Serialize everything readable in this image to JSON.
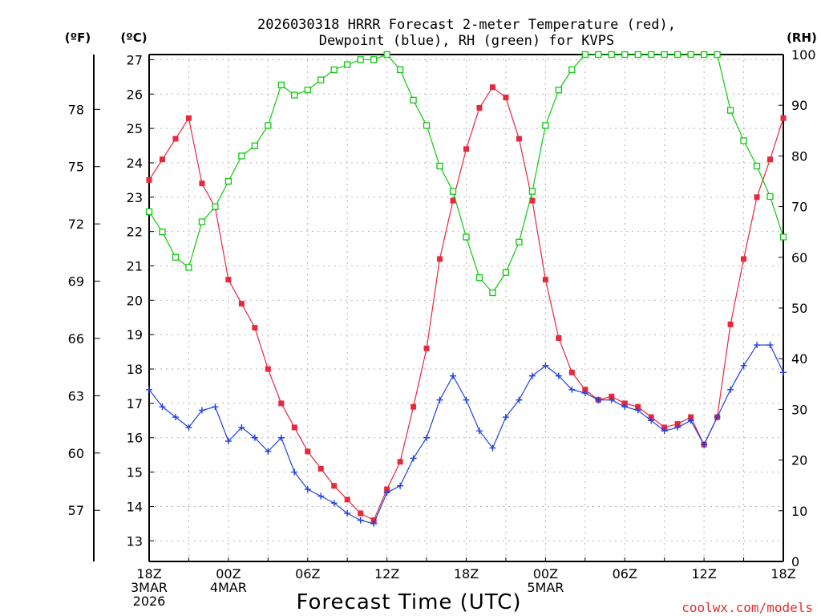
{
  "chart_data": {
    "type": "line",
    "title_line1": "2026030318 HRRR Forecast 2-meter Temperature (red),",
    "title_line2": "Dewpoint (blue), RH (green) for KVPS",
    "xlabel": "Forecast Time (UTC)",
    "credit": "coolwx.com/models",
    "units": {
      "fahrenheit": "(ºF)",
      "celsius": "(ºC)",
      "rh": "(RH)"
    },
    "celsius_axis": {
      "min": 12.4,
      "max": 27.15,
      "ticks": [
        13,
        14,
        15,
        16,
        17,
        18,
        19,
        20,
        21,
        22,
        23,
        24,
        25,
        26,
        27
      ]
    },
    "fahrenheit_ticks": [
      57,
      60,
      63,
      66,
      69,
      72,
      75,
      78
    ],
    "rh_axis": {
      "min": 0,
      "max": 100,
      "ticks": [
        0,
        10,
        20,
        30,
        40,
        50,
        60,
        70,
        80,
        90,
        100
      ]
    },
    "hours": 48,
    "x_ticks": [
      {
        "hour": 0,
        "lines": [
          "18Z",
          "3MAR",
          "2026"
        ]
      },
      {
        "hour": 6,
        "lines": [
          "00Z",
          "4MAR"
        ]
      },
      {
        "hour": 12,
        "lines": [
          "06Z"
        ]
      },
      {
        "hour": 18,
        "lines": [
          "12Z"
        ]
      },
      {
        "hour": 24,
        "lines": [
          "18Z"
        ]
      },
      {
        "hour": 30,
        "lines": [
          "00Z",
          "5MAR"
        ]
      },
      {
        "hour": 36,
        "lines": [
          "06Z"
        ]
      },
      {
        "hour": 42,
        "lines": [
          "12Z"
        ]
      },
      {
        "hour": 48,
        "lines": [
          "18Z"
        ]
      }
    ],
    "series": [
      {
        "name": "Temperature",
        "unit": "C",
        "color": "#e8283c",
        "marker": "filled-square",
        "values": [
          23.5,
          24.1,
          24.7,
          25.3,
          23.4,
          22.7,
          20.6,
          19.9,
          19.2,
          18.0,
          17.0,
          16.3,
          15.6,
          15.1,
          14.6,
          14.2,
          13.8,
          13.6,
          14.5,
          15.3,
          16.9,
          18.6,
          21.2,
          22.9,
          24.4,
          25.6,
          26.2,
          25.9,
          24.7,
          22.9,
          20.6,
          18.9,
          17.9,
          17.4,
          17.1,
          17.2,
          17.0,
          16.9,
          16.6,
          16.3,
          16.4,
          16.6,
          15.8,
          16.6,
          19.3,
          21.2,
          23.0,
          24.1,
          25.3
        ]
      },
      {
        "name": "Dewpoint",
        "unit": "C",
        "color": "#2040e0",
        "marker": "plus",
        "values": [
          17.4,
          16.9,
          16.6,
          16.3,
          16.8,
          16.9,
          15.9,
          16.3,
          16.0,
          15.6,
          16.0,
          15.0,
          14.5,
          14.3,
          14.1,
          13.8,
          13.6,
          13.5,
          14.4,
          14.6,
          15.4,
          16.0,
          17.1,
          17.8,
          17.1,
          16.2,
          15.7,
          16.6,
          17.1,
          17.8,
          18.1,
          17.8,
          17.4,
          17.3,
          17.1,
          17.1,
          16.9,
          16.8,
          16.5,
          16.2,
          16.3,
          16.5,
          15.8,
          16.6,
          17.4,
          18.1,
          18.7,
          18.7,
          17.9
        ]
      },
      {
        "name": "RH",
        "unit": "%",
        "color": "#10c810",
        "marker": "open-square",
        "values": [
          69,
          65,
          60,
          58,
          67,
          70,
          75,
          80,
          82,
          86,
          94,
          92,
          93,
          95,
          97,
          98,
          99,
          99,
          100,
          97,
          91,
          86,
          78,
          73,
          64,
          56,
          53,
          57,
          63,
          73,
          86,
          93,
          97,
          100,
          100,
          100,
          100,
          100,
          100,
          100,
          100,
          100,
          100,
          100,
          89,
          83,
          78,
          72,
          64
        ]
      }
    ]
  }
}
